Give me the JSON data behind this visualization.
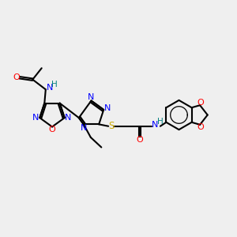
{
  "background_color": "#efefef",
  "atom_colors": {
    "C": "#000000",
    "N": "#0000ff",
    "O": "#ff0000",
    "S": "#ccaa00",
    "H": "#008080"
  },
  "bond_color": "#000000",
  "bond_width": 1.5,
  "figsize": [
    3.0,
    3.0
  ],
  "dpi": 100
}
